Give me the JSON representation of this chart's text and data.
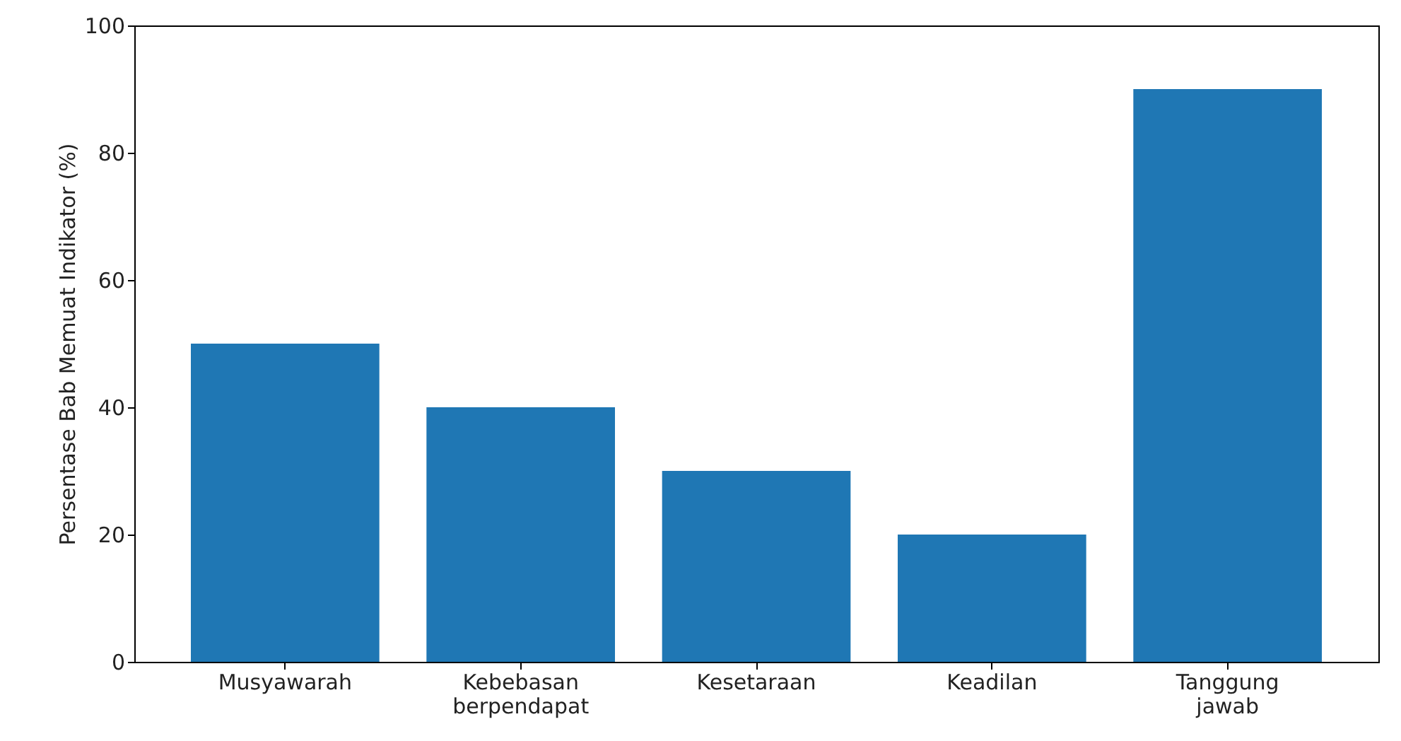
{
  "chart_data": {
    "type": "bar",
    "ylabel": "Persentase Bab Memuat Indikator (%)",
    "categories": [
      "Musyawarah",
      "Kebebasan berpendapat",
      "Kesetaraan",
      "Keadilan",
      "Tanggung jawab"
    ],
    "values": [
      50,
      40,
      30,
      20,
      90
    ],
    "color": "#1f77b4",
    "ylim": [
      0,
      100
    ],
    "yticks": [
      0,
      20,
      40,
      60,
      80,
      100
    ],
    "grid": false
  }
}
